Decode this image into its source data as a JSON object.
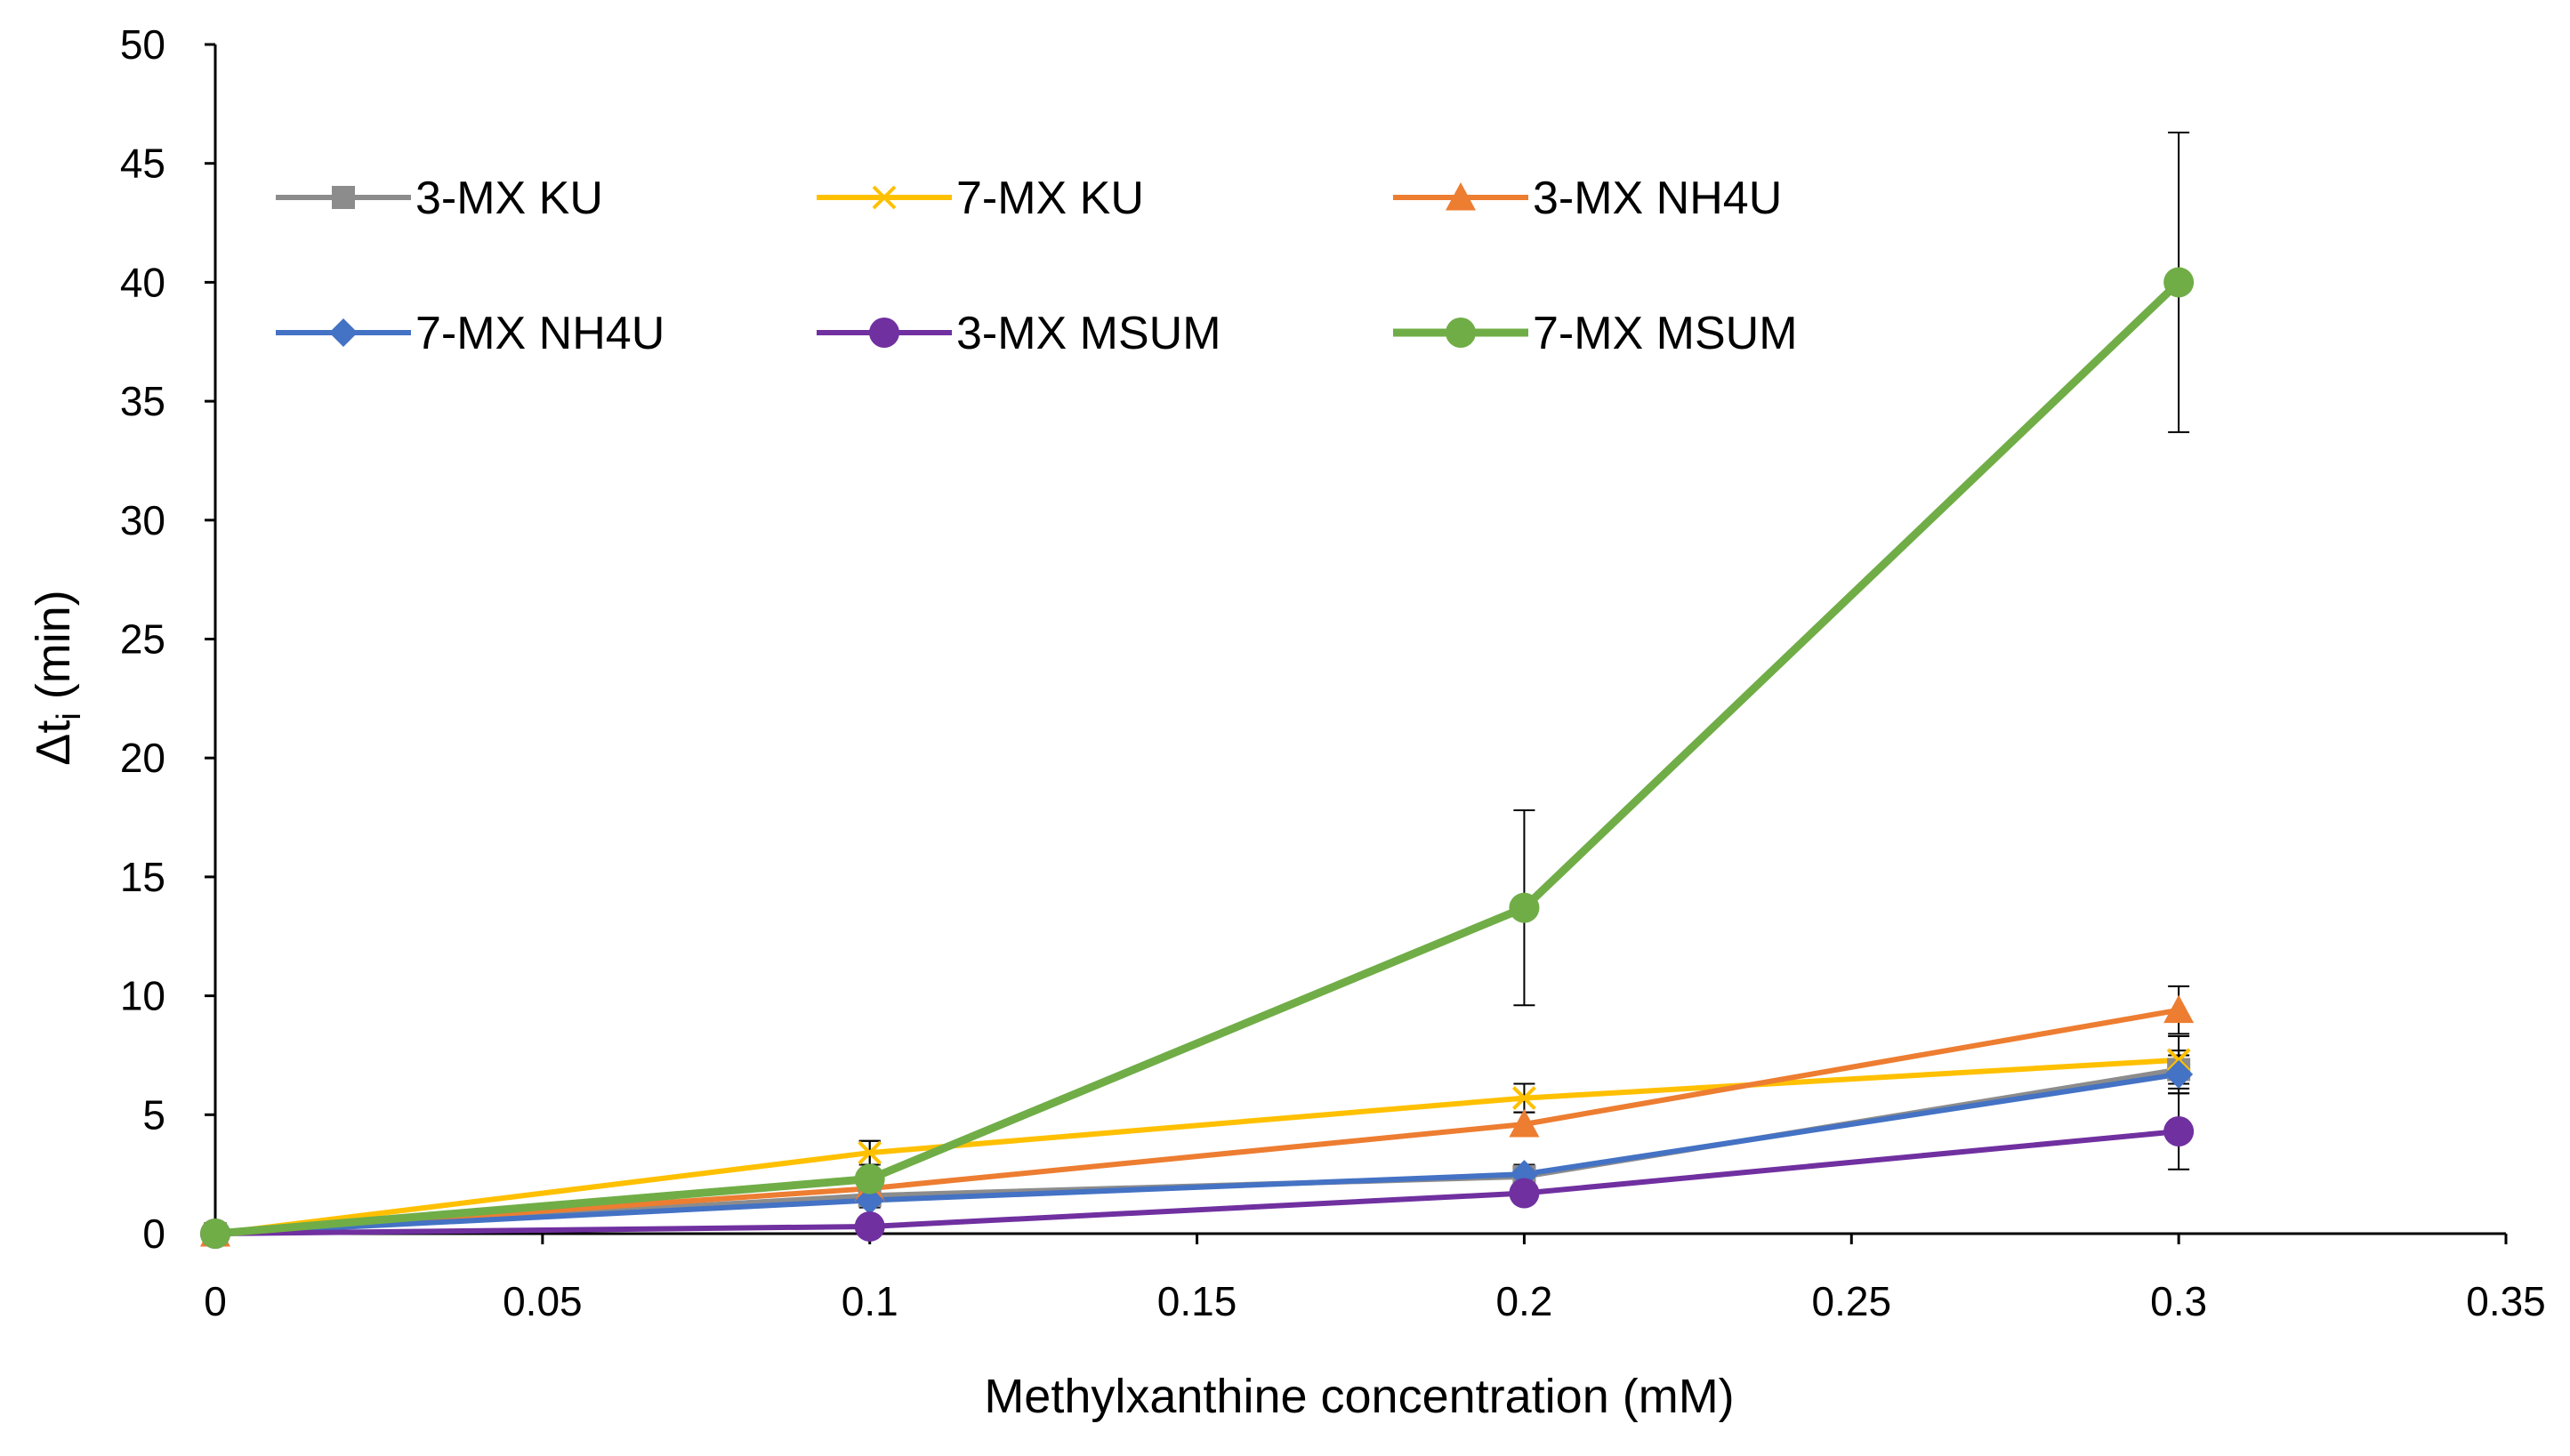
{
  "chart_data": {
    "type": "line",
    "title": "",
    "xlabel": "Methylxanthine concentration (mM)",
    "ylabel": {
      "main": "Δt",
      "sub": "i",
      "unit": " (min)"
    },
    "xlim": [
      0,
      0.35
    ],
    "ylim": [
      0,
      50
    ],
    "xticks": [
      "0",
      "0.05",
      "0.1",
      "0.15",
      "0.2",
      "0.25",
      "0.3",
      "0.35"
    ],
    "xtick_values": [
      0,
      0.05,
      0.1,
      0.15,
      0.2,
      0.25,
      0.3,
      0.35
    ],
    "yticks": [
      "0",
      "5",
      "10",
      "15",
      "20",
      "25",
      "30",
      "35",
      "40",
      "45",
      "50"
    ],
    "ytick_values": [
      0,
      5,
      10,
      15,
      20,
      25,
      30,
      35,
      40,
      45,
      50
    ],
    "grid": false,
    "legend_position": "top-left",
    "x": [
      0,
      0.1,
      0.2,
      0.3
    ],
    "series": [
      {
        "name": "3-MX KU",
        "color": "#8c8c8c",
        "marker": "square",
        "values": [
          0,
          1.6,
          2.4,
          6.9
        ],
        "errors": [
          0,
          0.3,
          0.4,
          0.8
        ]
      },
      {
        "name": "7-MX KU",
        "color": "#ffc000",
        "marker": "x",
        "values": [
          0,
          3.4,
          5.7,
          7.3
        ],
        "errors": [
          0,
          0.5,
          0.6,
          1.0
        ]
      },
      {
        "name": "3-MX NH4U",
        "color": "#ed7d31",
        "marker": "triangle",
        "values": [
          0,
          1.9,
          4.6,
          9.4
        ],
        "errors": [
          0,
          0.3,
          0.5,
          1.0
        ]
      },
      {
        "name": "7-MX NH4U",
        "color": "#4472c4",
        "marker": "diamond",
        "values": [
          0,
          1.4,
          2.5,
          6.7
        ],
        "errors": [
          0,
          0.3,
          0.4,
          0.8
        ]
      },
      {
        "name": "3-MX MSUM",
        "color": "#7030a0",
        "marker": "circle",
        "values": [
          0,
          0.3,
          1.7,
          4.3
        ],
        "errors": [
          0,
          0.2,
          0.3,
          1.6
        ]
      },
      {
        "name": "7-MX MSUM",
        "color": "#70ad47",
        "marker": "circle",
        "values": [
          0,
          2.3,
          13.7,
          40.0
        ],
        "errors": [
          0,
          1.6,
          4.1,
          6.3
        ]
      }
    ]
  }
}
